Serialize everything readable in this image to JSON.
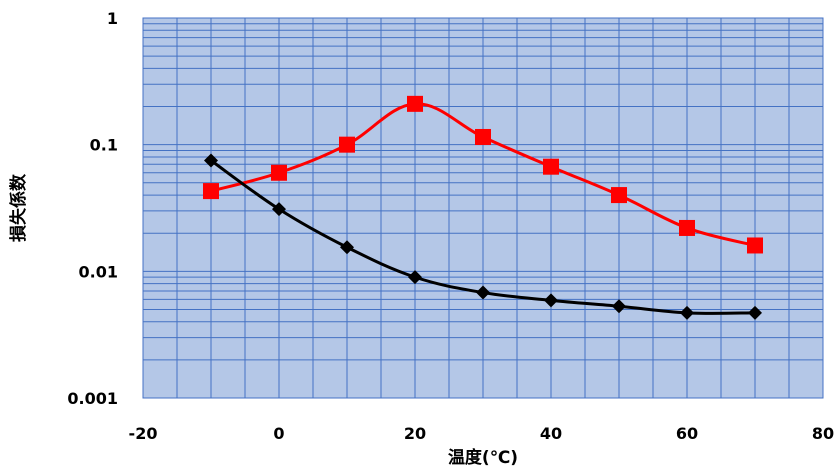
{
  "chart_data": {
    "type": "line",
    "xlabel": "温度(℃)",
    "ylabel": "損失係数",
    "xlim": [
      -20,
      80
    ],
    "ylim": [
      0.001,
      1
    ],
    "yscale": "log",
    "x_ticks": [
      "-20",
      "0",
      "20",
      "40",
      "60",
      "80"
    ],
    "y_ticks": [
      "0.001",
      "0.01",
      "0.1",
      "1"
    ],
    "grid": true,
    "plot_background": "#b4c7e7",
    "grid_color": "#4472c4",
    "series": [
      {
        "marker": "square",
        "color": "#ff0000",
        "x": [
          -10,
          0,
          10,
          20,
          30,
          40,
          50,
          60,
          70
        ],
        "y": [
          0.043,
          0.06,
          0.1,
          0.21,
          0.115,
          0.067,
          0.04,
          0.022,
          0.016
        ]
      },
      {
        "marker": "diamond",
        "color": "#000000",
        "x": [
          -10,
          0,
          10,
          20,
          30,
          40,
          50,
          60,
          70
        ],
        "y": [
          0.075,
          0.031,
          0.0155,
          0.009,
          0.0068,
          0.0059,
          0.0053,
          0.0047,
          0.0047
        ]
      }
    ]
  }
}
